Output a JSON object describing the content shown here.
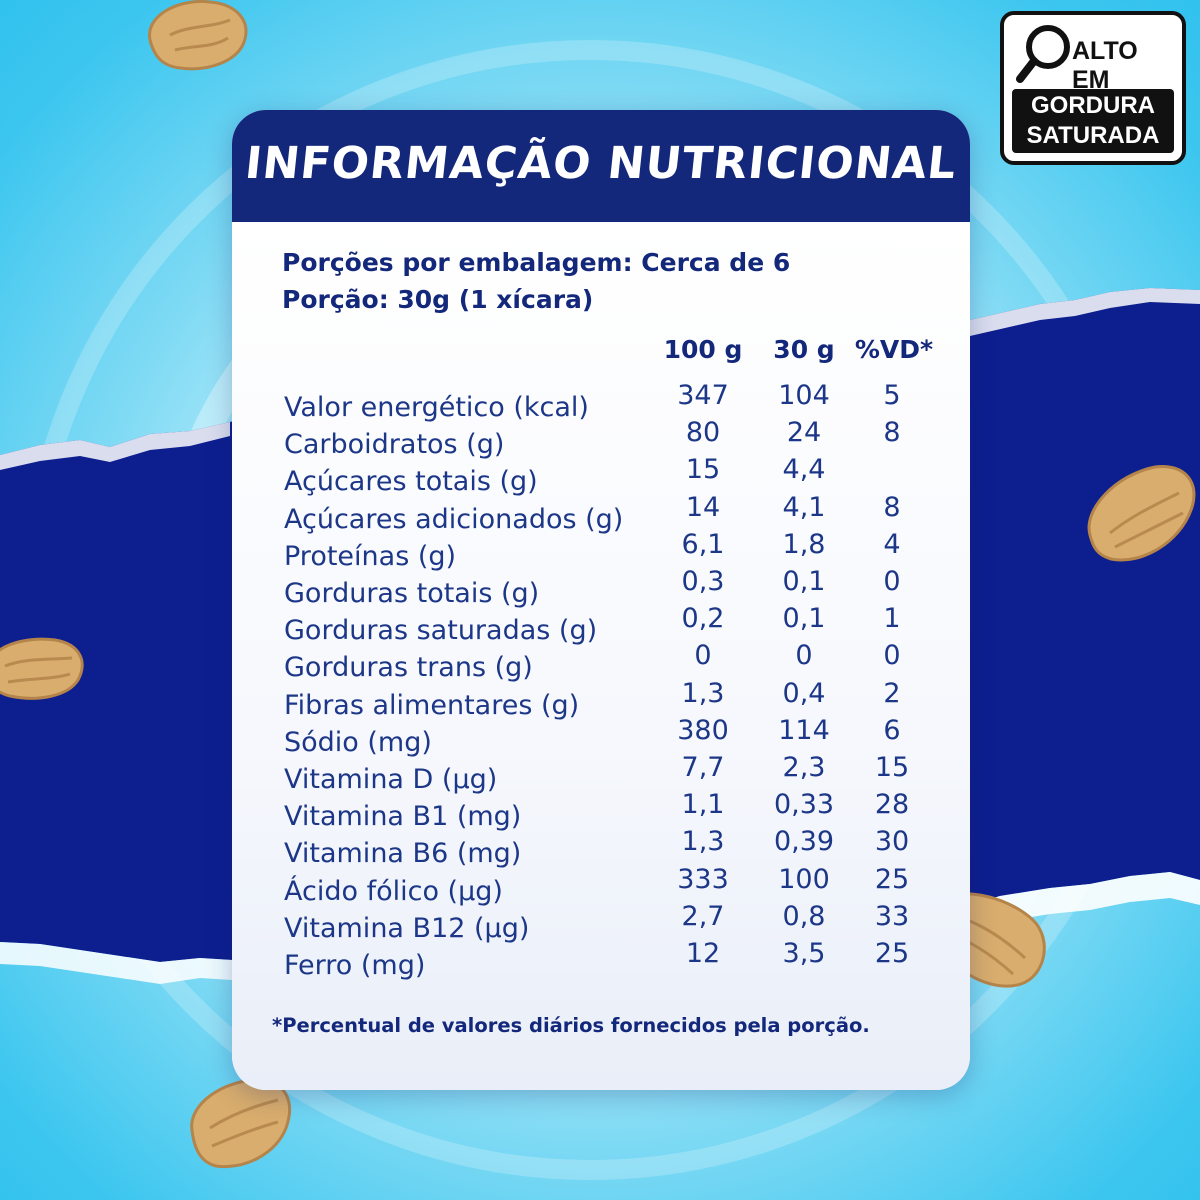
{
  "title": "INFORMAÇÃO NUTRICIONAL",
  "portions_per_package": "Porções por embalagem: Cerca de 6",
  "portion_size": "Porção: 30g (1 xícara)",
  "columns": [
    "100 g",
    "30 g",
    "%VD*"
  ],
  "rows": [
    {
      "label": "Valor energético (kcal)",
      "v100": "347",
      "v30": "104",
      "vd": "5"
    },
    {
      "label": "Carboidratos (g)",
      "v100": "80",
      "v30": "24",
      "vd": "8"
    },
    {
      "label": "Açúcares totais (g)",
      "v100": "15",
      "v30": "4,4",
      "vd": ""
    },
    {
      "label": "Açúcares adicionados (g)",
      "v100": "14",
      "v30": "4,1",
      "vd": "8"
    },
    {
      "label": "Proteínas (g)",
      "v100": "6,1",
      "v30": "1,8",
      "vd": "4"
    },
    {
      "label": "Gorduras totais (g)",
      "v100": "0,3",
      "v30": "0,1",
      "vd": "0"
    },
    {
      "label": "Gorduras saturadas (g)",
      "v100": "0,2",
      "v30": "0,1",
      "vd": "1"
    },
    {
      "label": "Gorduras trans (g)",
      "v100": "0",
      "v30": "0",
      "vd": "0"
    },
    {
      "label": "Fibras alimentares (g)",
      "v100": "1,3",
      "v30": "0,4",
      "vd": "2"
    },
    {
      "label": "Sódio (mg)",
      "v100": "380",
      "v30": "114",
      "vd": "6"
    },
    {
      "label": "Vitamina D (µg)",
      "v100": "7,7",
      "v30": "2,3",
      "vd": "15"
    },
    {
      "label": "Vitamina B1 (mg)",
      "v100": "1,1",
      "v30": "0,33",
      "vd": "28"
    },
    {
      "label": "Vitamina B6 (mg)",
      "v100": "1,3",
      "v30": "0,39",
      "vd": "30"
    },
    {
      "label": "Ácido fólico (µg)",
      "v100": "333",
      "v30": "100",
      "vd": "25"
    },
    {
      "label": "Vitamina B12 (µg)",
      "v100": "2,7",
      "v30": "0,8",
      "vd": "33"
    },
    {
      "label": "Ferro (mg)",
      "v100": "12",
      "v30": "3,5",
      "vd": "25"
    }
  ],
  "footnote": "*Percentual de valores diários fornecidos pela porção.",
  "badge": {
    "top": "ALTO EM",
    "line1": "GORDURA",
    "line2": "SATURADA",
    "icon": "magnifier-icon"
  },
  "colors": {
    "navy": "#13287b",
    "text": "#1d3788",
    "sky": "#3cc6ef",
    "band": "#0c1d8c",
    "flake": "#d9ad6d"
  }
}
